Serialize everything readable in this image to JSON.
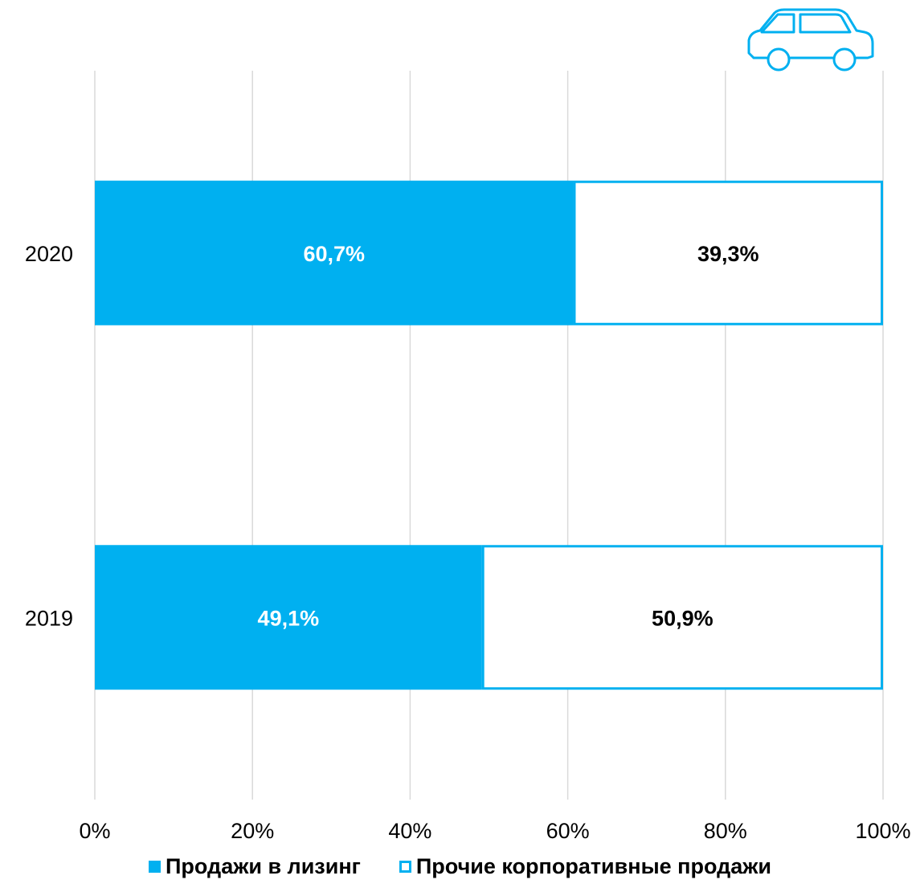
{
  "chart_data": {
    "type": "bar",
    "orientation": "horizontal",
    "stacked": true,
    "categories": [
      "2019",
      "2020"
    ],
    "series": [
      {
        "name": "Продажи в лизинг",
        "values": [
          49.1,
          60.7
        ],
        "labels": [
          "49,1%",
          "60,7%"
        ]
      },
      {
        "name": "Прочие корпоративные продажи",
        "values": [
          50.9,
          39.3
        ],
        "labels": [
          "50,9%",
          "39,3%"
        ]
      }
    ],
    "xlim": [
      0,
      100
    ],
    "x_ticks": [
      "0%",
      "20%",
      "40%",
      "60%",
      "80%",
      "100%"
    ],
    "grid": true,
    "legend_position": "bottom"
  },
  "colors": {
    "primary": "#00B0F0",
    "secondary_fill": "#FFFFFF",
    "grid": "#D9D9D9"
  },
  "icon": "car-icon"
}
